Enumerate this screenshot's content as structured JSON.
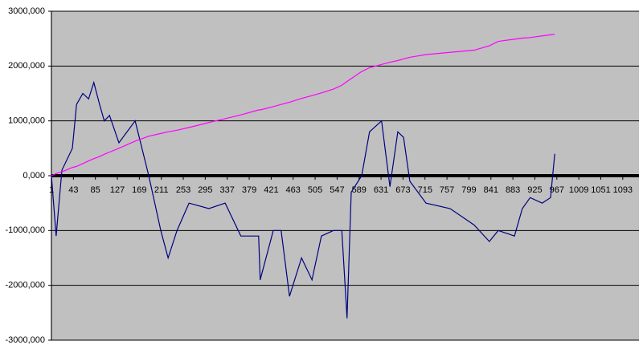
{
  "chart_data": {
    "type": "line",
    "x": [
      1,
      10,
      21,
      41,
      49,
      61,
      72,
      82,
      93,
      102,
      112,
      130,
      161,
      187,
      210,
      224,
      241,
      264,
      302,
      333,
      363,
      397,
      400,
      425,
      440,
      456,
      479,
      499,
      517,
      540,
      556,
      566,
      574,
      594,
      609,
      632,
      648,
      663,
      674,
      686,
      717,
      763,
      809,
      838,
      855,
      886,
      901,
      916,
      939,
      955,
      963
    ],
    "series": [
      {
        "color": "#000080",
        "values": [
          0,
          -1100000,
          100000,
          500000,
          1300000,
          1500000,
          1400000,
          1700000,
          1300000,
          1000000,
          1100000,
          600000,
          1000000,
          0,
          -1000000,
          -1500000,
          -1000000,
          -500000,
          -600000,
          -500000,
          -1100000,
          -1100000,
          -1900000,
          -1000000,
          -1000000,
          -2200000,
          -1500000,
          -1900000,
          -1100000,
          -1000000,
          -1000000,
          -2600000,
          -300000,
          0,
          800000,
          1000000,
          -200000,
          800000,
          700000,
          -100000,
          -500000,
          -600000,
          -900000,
          -1200000,
          -1000000,
          -1100000,
          -600000,
          -400000,
          -500000,
          -400000,
          400000
        ]
      },
      {
        "color": "#ff00ff",
        "values": [
          0,
          40000,
          70000,
          150000,
          170000,
          220000,
          270000,
          310000,
          350000,
          390000,
          430000,
          500000,
          630000,
          720000,
          770000,
          800000,
          830000,
          880000,
          970000,
          1040000,
          1110000,
          1200000,
          1200000,
          1260000,
          1300000,
          1340000,
          1410000,
          1460000,
          1510000,
          1580000,
          1650000,
          1720000,
          1770000,
          1900000,
          1970000,
          2030000,
          2070000,
          2100000,
          2130000,
          2160000,
          2210000,
          2250000,
          2290000,
          2370000,
          2450000,
          2490000,
          2510000,
          2520000,
          2550000,
          2570000,
          2580000
        ]
      }
    ],
    "xlim": [
      1,
      1124
    ],
    "xticks": [
      1,
      43,
      85,
      127,
      169,
      211,
      253,
      295,
      337,
      379,
      421,
      463,
      505,
      547,
      589,
      631,
      673,
      715,
      757,
      799,
      841,
      883,
      925,
      967,
      1009,
      1051,
      1093
    ],
    "ylim": [
      -3000000,
      3000000
    ],
    "yticks": [
      {
        "value": -3000000,
        "label": "-3000,000"
      },
      {
        "value": -2000000,
        "label": "-2000,000"
      },
      {
        "value": -1000000,
        "label": "-1000,000"
      },
      {
        "value": 0,
        "label": "0,000"
      },
      {
        "value": 1000000,
        "label": "1000,000"
      },
      {
        "value": 2000000,
        "label": "2000,000"
      },
      {
        "value": 3000000,
        "label": "3000,000"
      }
    ],
    "grid": true
  }
}
